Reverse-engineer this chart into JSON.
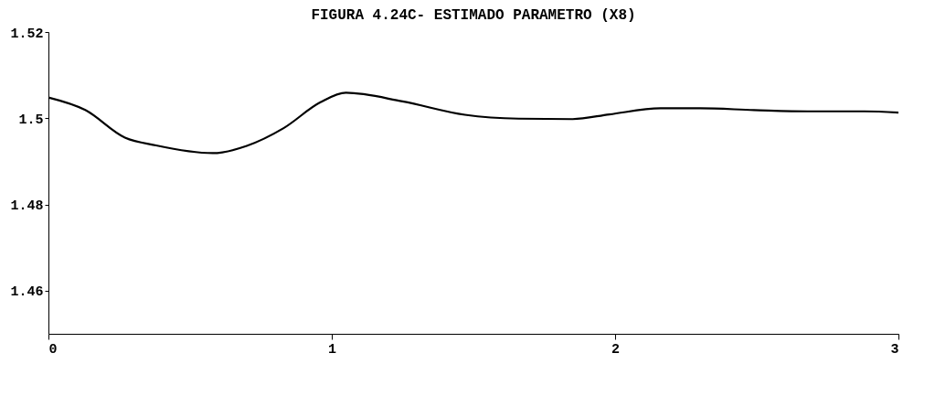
{
  "chart_data": {
    "type": "line",
    "title": "FIGURA 4.24C- ESTIMADO PARAMETRO (X8)",
    "x": [
      0,
      0.13,
      0.27,
      0.38,
      0.58,
      0.7,
      0.83,
      0.96,
      1.05,
      1.25,
      1.47,
      1.66,
      1.85,
      1.98,
      2.16,
      2.3,
      2.49,
      2.68,
      2.88,
      3
    ],
    "series": [
      {
        "color": "#000000",
        "values": [
          1.5048,
          1.5019,
          1.4955,
          1.4937,
          1.4919,
          1.4936,
          1.4977,
          1.5037,
          1.5059,
          1.5039,
          1.5008,
          1.4999,
          1.4998,
          1.5009,
          1.5023,
          1.5023,
          1.5019,
          1.5016,
          1.5016,
          1.5013
        ]
      }
    ],
    "xlim": [
      0,
      3
    ],
    "xticks": [
      0,
      1,
      2,
      3
    ],
    "ylim": [
      1.45,
      1.52
    ],
    "yticks": [
      1.46,
      1.48,
      1.5,
      1.52
    ],
    "grid": false
  }
}
